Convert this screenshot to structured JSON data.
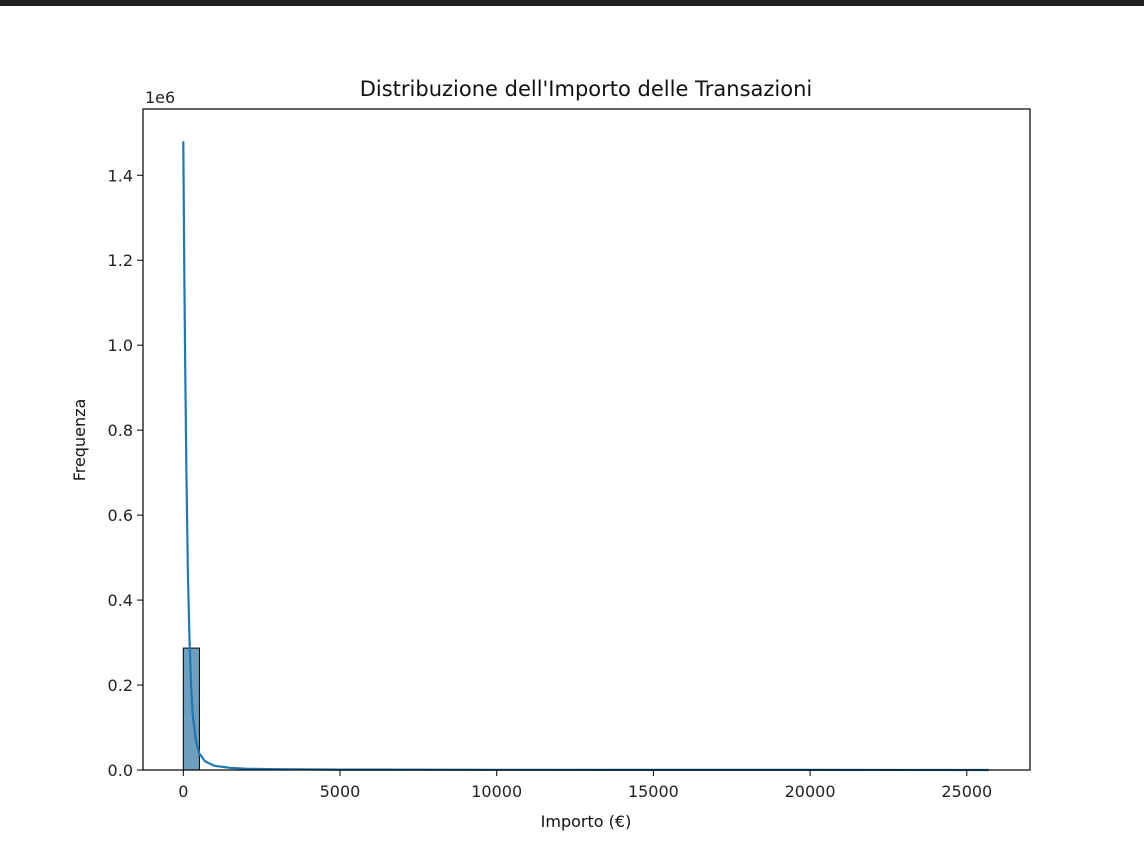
{
  "chart_data": {
    "type": "bar",
    "title": "Distribuzione dell'Importo delle Transazioni",
    "xlabel": "Importo (€)",
    "ylabel": "Frequenza",
    "y_offset_label": "1e6",
    "xlim": [
      -1286,
      27017
    ],
    "ylim": [
      0,
      1.556
    ],
    "xticks": [
      0,
      5000,
      10000,
      15000,
      20000,
      25000
    ],
    "xtick_labels": [
      "0",
      "5000",
      "10000",
      "15000",
      "20000",
      "25000"
    ],
    "yticks": [
      0.0,
      0.2,
      0.4,
      0.6,
      0.8,
      1.0,
      1.2,
      1.4
    ],
    "ytick_labels": [
      "0.0",
      "0.2",
      "0.4",
      "0.6",
      "0.8",
      "1.0",
      "1.2",
      "1.4"
    ],
    "bars": [
      {
        "x0": 0,
        "x1": 514,
        "value": 0.287
      }
    ],
    "kde_curve": {
      "x": [
        0,
        30,
        60,
        100,
        150,
        200,
        250,
        300,
        400,
        500,
        700,
        1000,
        1500,
        2000,
        3000,
        5000,
        10000,
        15000,
        20000,
        25700
      ],
      "y": [
        1.48,
        1.2,
        0.95,
        0.7,
        0.45,
        0.3,
        0.2,
        0.13,
        0.07,
        0.04,
        0.02,
        0.01,
        0.005,
        0.003,
        0.002,
        0.001,
        0.0005,
        0.0003,
        0.0002,
        0.0001
      ]
    },
    "grid": false,
    "colors": {
      "bar_fill": "#6f9fbf",
      "bar_edge": "#000000",
      "kde_line": "#1f77b4"
    }
  }
}
